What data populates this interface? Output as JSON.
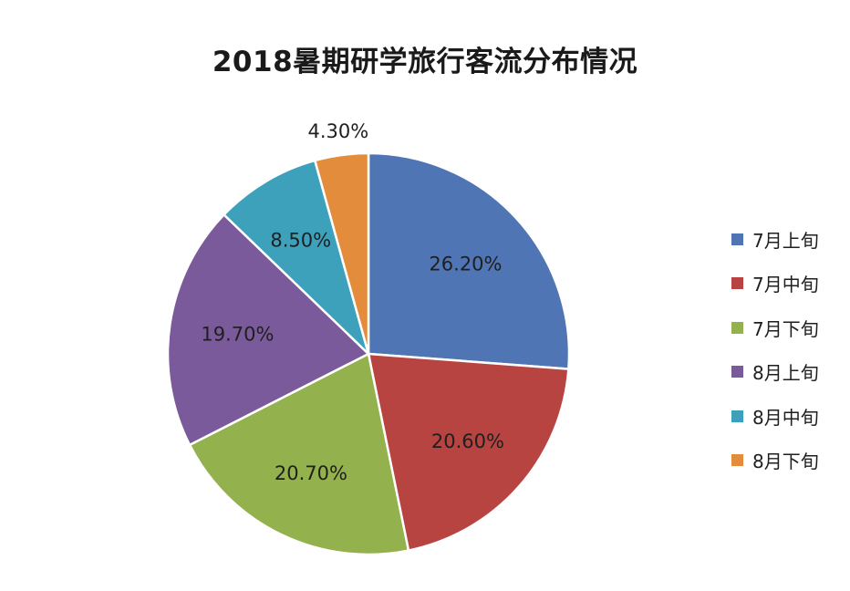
{
  "chart_data": {
    "type": "pie",
    "title": "2018暑期研学旅行客流分布情况",
    "legend_position": "right",
    "slices": [
      {
        "label": "7月上旬",
        "value": 26.2,
        "display": "26.20%",
        "color": "#4f75b4"
      },
      {
        "label": "7月中旬",
        "value": 20.6,
        "display": "20.60%",
        "color": "#b84442"
      },
      {
        "label": "7月下旬",
        "value": 20.7,
        "display": "20.70%",
        "color": "#93b14d"
      },
      {
        "label": "8月上旬",
        "value": 19.7,
        "display": "19.70%",
        "color": "#7a5a9a"
      },
      {
        "label": "8月中旬",
        "value": 8.5,
        "display": "8.50%",
        "color": "#3ea1bb"
      },
      {
        "label": "8月下旬",
        "value": 4.3,
        "display": "4.30%",
        "color": "#e38d3c"
      }
    ]
  }
}
